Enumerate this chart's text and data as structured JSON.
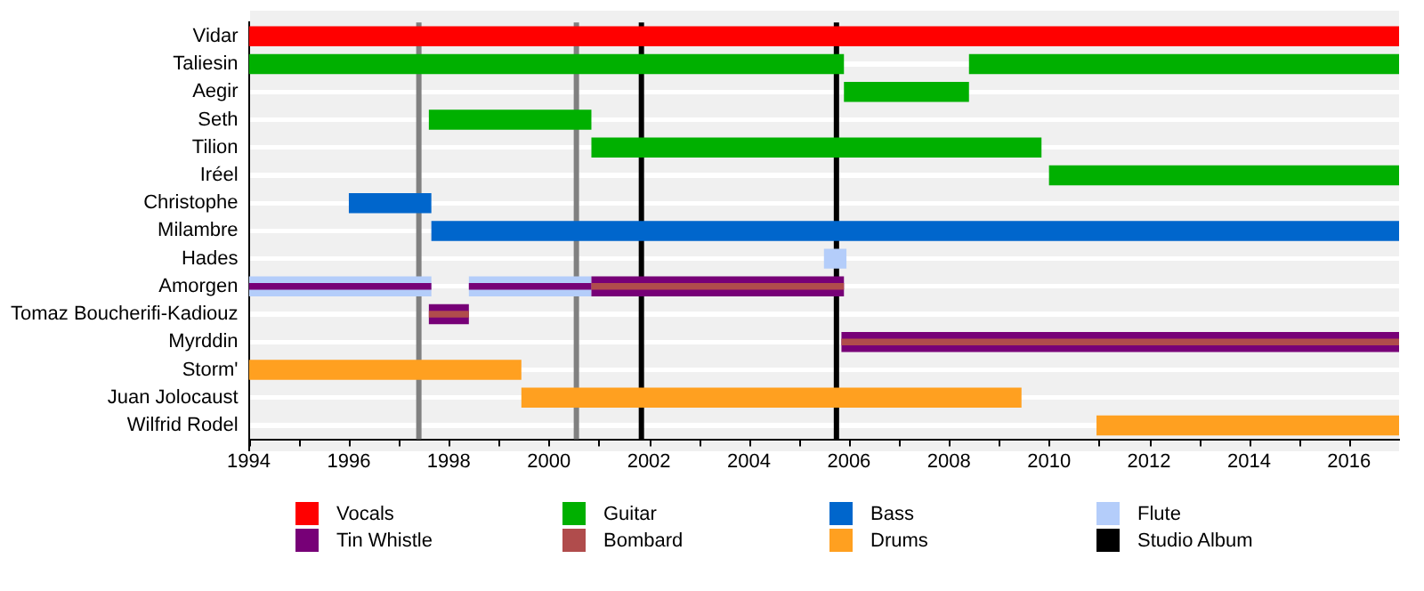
{
  "chart_data": {
    "type": "bar",
    "orientation": "horizontal",
    "categories": [
      "Vidar",
      "Taliesin",
      "Aegir",
      "Seth",
      "Tilion",
      "Iréel",
      "Christophe",
      "Milambre",
      "Hades",
      "Amorgen",
      "Tomaz Boucherifi-Kadiouz",
      "Myrddin",
      "Storm'",
      "Juan Jolocaust",
      "Wilfrid Rodel"
    ],
    "series": [
      {
        "name": "Vocals",
        "color": "#ff0000",
        "base": [
          1994,
          null,
          null,
          null,
          null,
          null,
          null,
          null,
          null,
          null,
          null,
          null,
          null,
          null,
          null
        ],
        "values": [
          23,
          null,
          null,
          null,
          null,
          null,
          null,
          null,
          null,
          null,
          null,
          null,
          null,
          null,
          null
        ]
      },
      {
        "name": "Guitar",
        "color": "#00b000",
        "base": [
          null,
          1994,
          2005.9,
          1997.6,
          2000.85,
          2010,
          null,
          null,
          null,
          null,
          null,
          null,
          null,
          null,
          null
        ],
        "values": [
          null,
          11.9,
          2.5,
          3.25,
          9,
          7,
          null,
          null,
          null,
          null,
          null,
          null,
          null,
          null,
          null
        ]
      },
      {
        "color": "#00b000",
        "base": [
          null,
          2008.4,
          null,
          null,
          null,
          null,
          null,
          null,
          null,
          null,
          null,
          null,
          null,
          null,
          null
        ],
        "values": [
          null,
          8.6,
          null,
          null,
          null,
          null,
          null,
          null,
          null,
          null,
          null,
          null,
          null,
          null,
          null
        ]
      },
      {
        "name": "Bass",
        "color": "#0066cc",
        "base": [
          null,
          null,
          null,
          null,
          null,
          null,
          1996,
          1997.65,
          null,
          null,
          null,
          null,
          null,
          null,
          null
        ],
        "values": [
          null,
          null,
          null,
          null,
          null,
          null,
          1.65,
          19.35,
          null,
          null,
          null,
          null,
          null,
          null,
          null
        ]
      },
      {
        "name": "Flute",
        "color": "#b4cdfa",
        "base": [
          null,
          null,
          null,
          null,
          null,
          null,
          null,
          null,
          2005.5,
          1994,
          null,
          null,
          null,
          null,
          null
        ],
        "values": [
          null,
          null,
          null,
          null,
          null,
          null,
          null,
          null,
          0.45,
          3.65,
          null,
          null,
          null,
          null,
          null
        ]
      },
      {
        "color": "#b4cdfa",
        "base": [
          null,
          null,
          null,
          null,
          null,
          null,
          null,
          null,
          null,
          1998.4,
          null,
          null,
          null,
          null,
          null
        ],
        "values": [
          null,
          null,
          null,
          null,
          null,
          null,
          null,
          null,
          null,
          2.45,
          null,
          null,
          null,
          null,
          null
        ]
      },
      {
        "name": "Tin Whistle",
        "color": "#770077",
        "base": [
          null,
          null,
          null,
          null,
          null,
          null,
          null,
          null,
          null,
          2000.85,
          1997.6,
          2005.85,
          null,
          null,
          null
        ],
        "values": [
          null,
          null,
          null,
          null,
          null,
          null,
          null,
          null,
          null,
          5.05,
          0.8,
          11.15,
          null,
          null,
          null
        ]
      },
      {
        "color": "#770077",
        "base": [
          null,
          null,
          null,
          null,
          null,
          null,
          null,
          null,
          null,
          1994,
          null,
          null,
          null,
          null,
          null
        ],
        "values": [
          null,
          null,
          null,
          null,
          null,
          null,
          null,
          null,
          null,
          3.65,
          null,
          null,
          null,
          null,
          null
        ]
      },
      {
        "color": "#770077",
        "base": [
          null,
          null,
          null,
          null,
          null,
          null,
          null,
          null,
          null,
          1998.4,
          null,
          null,
          null,
          null,
          null
        ],
        "values": [
          null,
          null,
          null,
          null,
          null,
          null,
          null,
          null,
          null,
          2.45,
          null,
          null,
          null,
          null,
          null
        ]
      },
      {
        "name": "Bombard",
        "color": "#b04c4c",
        "base": [
          null,
          null,
          null,
          null,
          null,
          null,
          null,
          null,
          null,
          2000.85,
          1997.6,
          2005.85,
          null,
          null,
          null
        ],
        "values": [
          null,
          null,
          null,
          null,
          null,
          null,
          null,
          null,
          null,
          5.05,
          0.8,
          11.15,
          null,
          null,
          null
        ]
      },
      {
        "name": "Drums",
        "color": "#ffa020",
        "base": [
          null,
          null,
          null,
          null,
          null,
          null,
          null,
          null,
          null,
          null,
          null,
          null,
          1994,
          1999.45,
          2010.95
        ],
        "values": [
          null,
          null,
          null,
          null,
          null,
          null,
          null,
          null,
          null,
          null,
          null,
          null,
          5.45,
          10,
          6.05
        ]
      }
    ],
    "xlim": [
      1994,
      2017
    ],
    "xticks": [
      1994,
      {
        "value": 1995,
        "label": null
      },
      1996,
      {
        "value": 1997,
        "label": null
      },
      1998,
      {
        "value": 1999,
        "label": null
      },
      2000,
      {
        "value": 2001,
        "label": null
      },
      2002,
      {
        "value": 2003,
        "label": null
      },
      2004,
      {
        "value": 2005,
        "label": null
      },
      2006,
      {
        "value": 2007,
        "label": null
      },
      2008,
      {
        "value": 2009,
        "label": null
      },
      2010,
      {
        "value": 2011,
        "label": null
      },
      2012,
      {
        "value": 2013,
        "label": null
      },
      2014,
      {
        "value": 2015,
        "label": null
      },
      2016
    ],
    "ref_lines": [
      {
        "axis": "x",
        "value": 1997.4,
        "color": "#808080"
      },
      {
        "axis": "x",
        "value": 2000.55,
        "color": "#808080"
      },
      {
        "axis": "x",
        "value": 2001.85,
        "color": "#000000",
        "label": "Studio Album"
      },
      {
        "axis": "x",
        "value": 2005.75,
        "color": "#000000"
      }
    ],
    "grid": "y",
    "legend": "bottom"
  }
}
